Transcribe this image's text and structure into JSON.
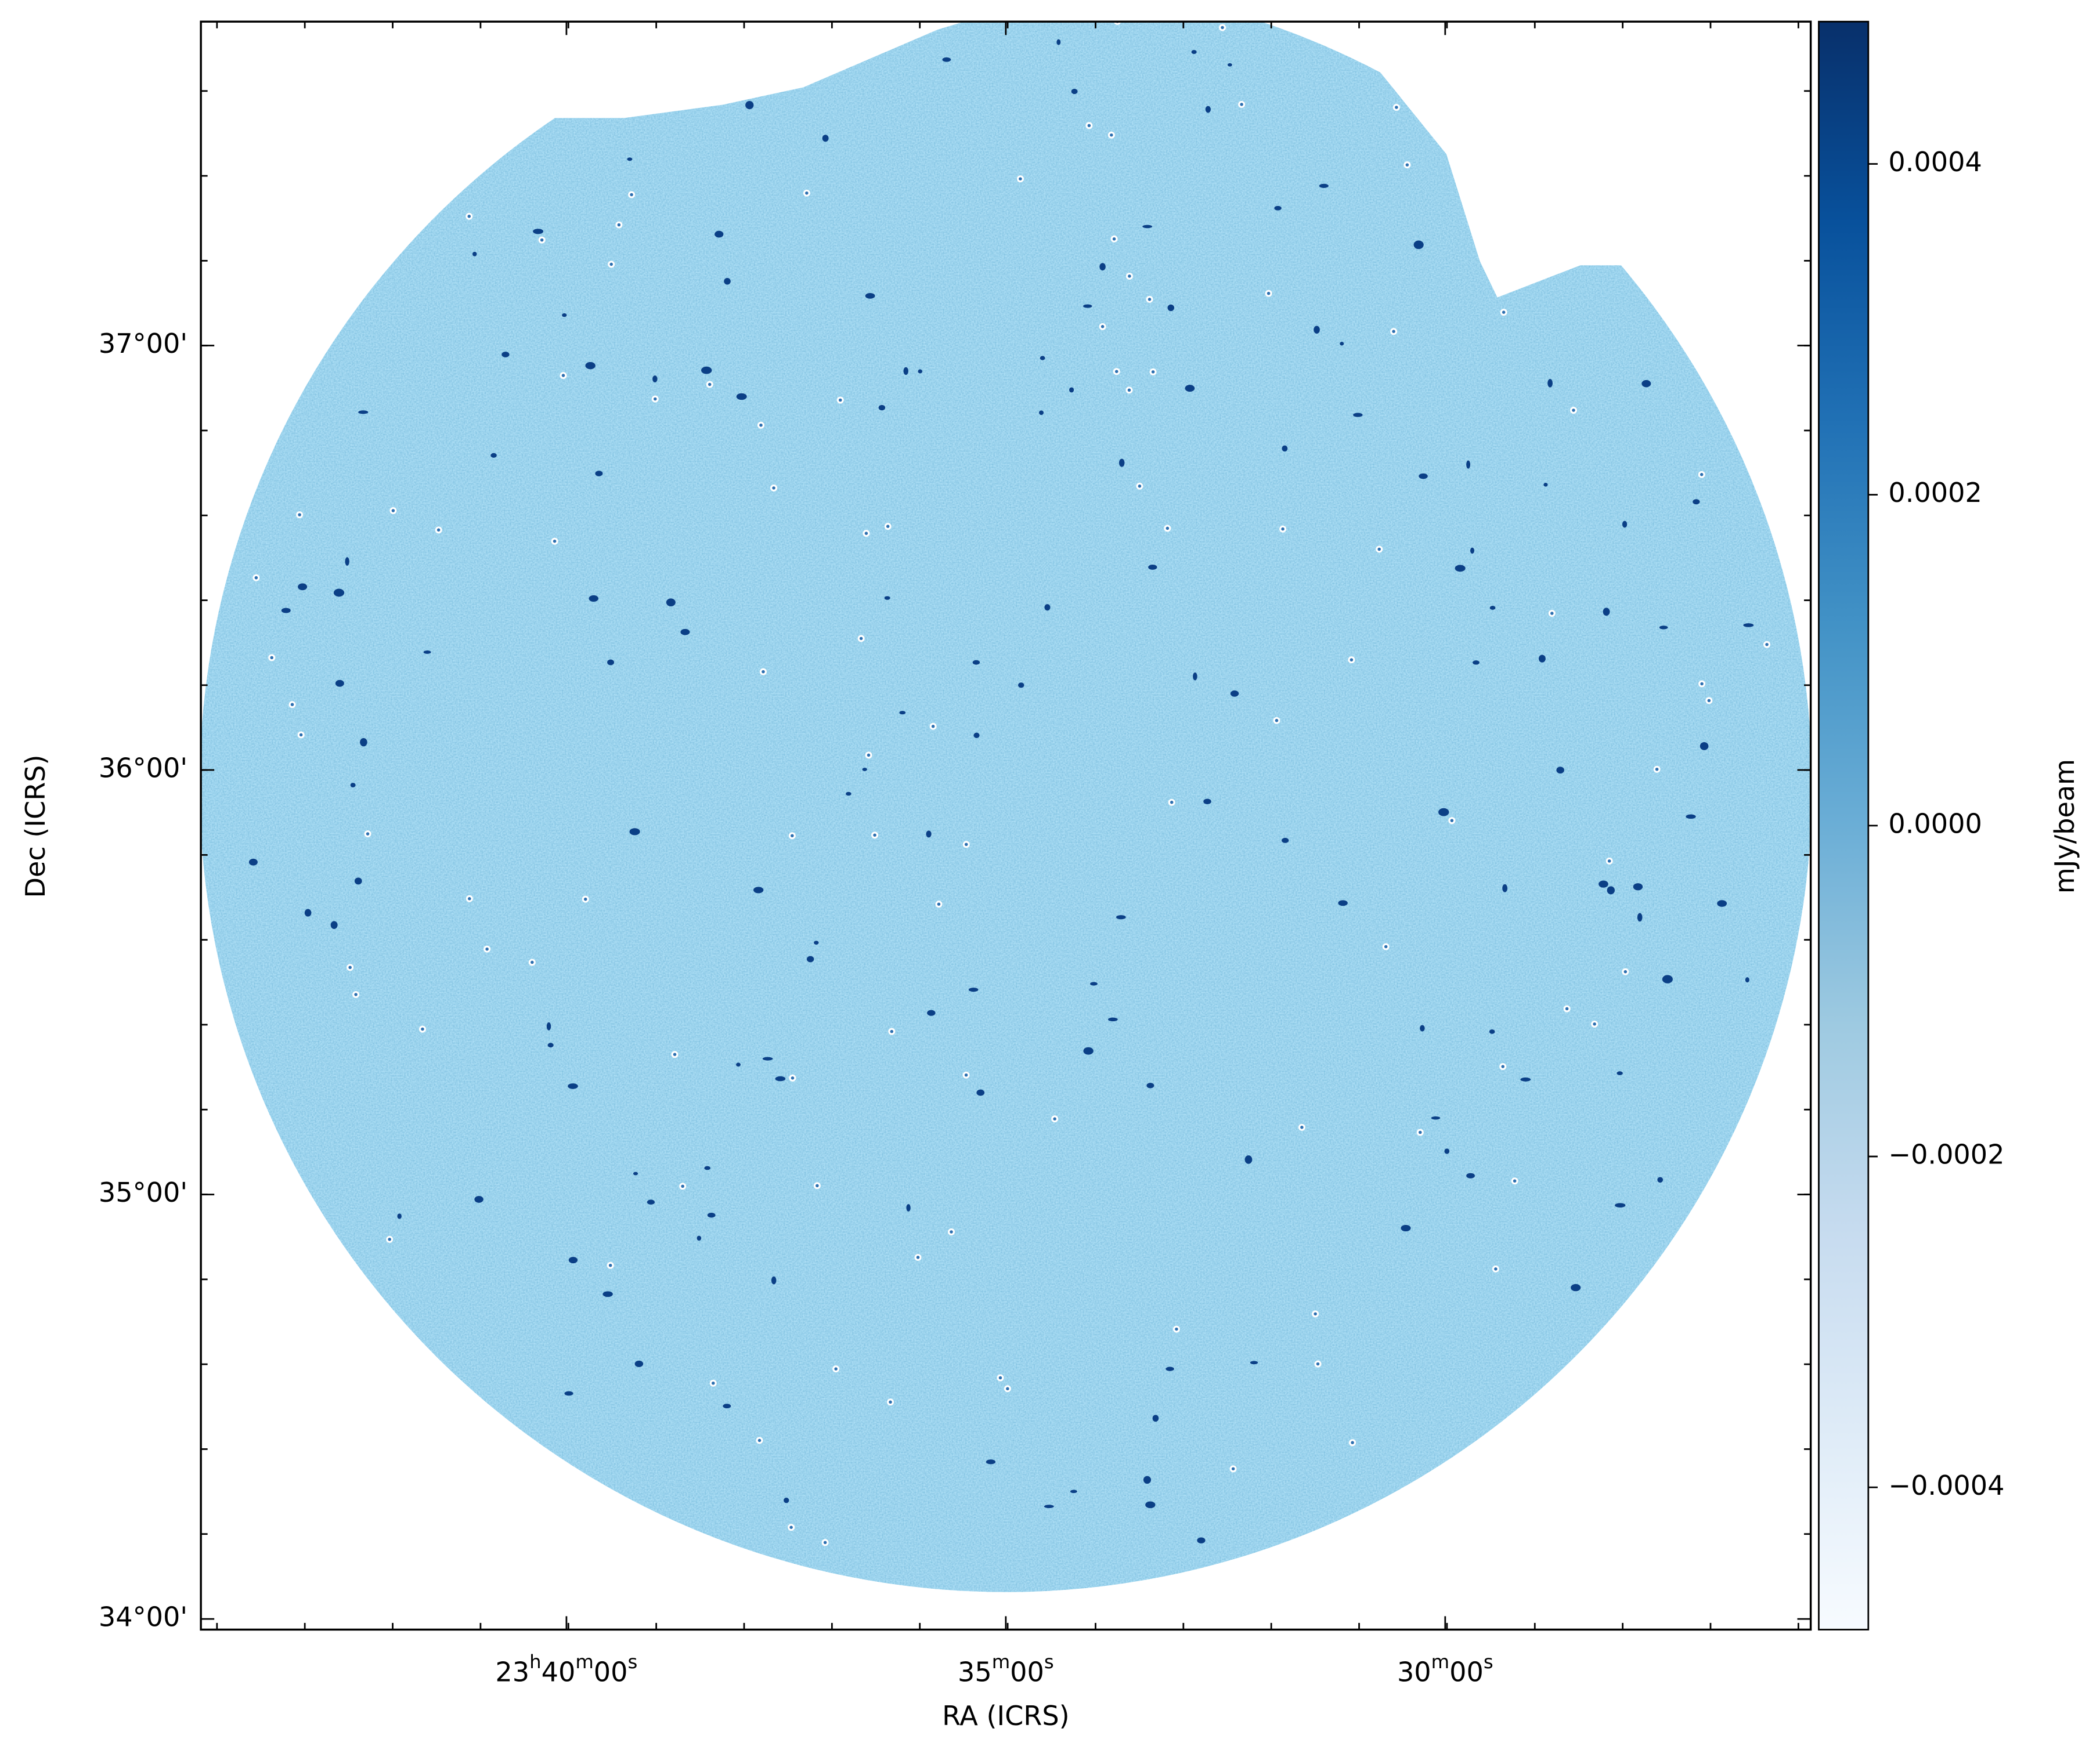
{
  "chart_data": {
    "type": "image",
    "xlabel": "RA (ICRS)",
    "ylabel": "Dec (ICRS)",
    "xlim": [
      356.04,
      351.46
    ],
    "ylim": [
      33.975,
      37.763
    ],
    "xticks": [
      {
        "value": 355,
        "label": "23h40m00s"
      },
      {
        "value": 353.75,
        "label": "35m00s"
      },
      {
        "value": 352.5,
        "label": "30m00s"
      }
    ],
    "yticks": [
      {
        "value": 34,
        "label": "34°00'"
      },
      {
        "value": 35,
        "label": "35°00'"
      },
      {
        "value": 36,
        "label": "36°00'"
      },
      {
        "value": 37,
        "label": "37°00'"
      }
    ],
    "colorbar": {
      "label": "mJy/beam",
      "clim": [
        -0.000486,
        0.000486
      ],
      "ticks": [
        {
          "value": -0.0004,
          "label": "−0.0004"
        },
        {
          "value": -0.0002,
          "label": "−0.0002"
        },
        {
          "value": 0,
          "label": "0.0000"
        },
        0.0002,
        0.0004
      ],
      "colormap": [
        "#f7fbff",
        "#deebf7",
        "#c6dbef",
        "#9ecae1",
        "#6baed6",
        "#4292c6",
        "#2171b5",
        "#08519c",
        "#08306b"
      ]
    }
  }
}
